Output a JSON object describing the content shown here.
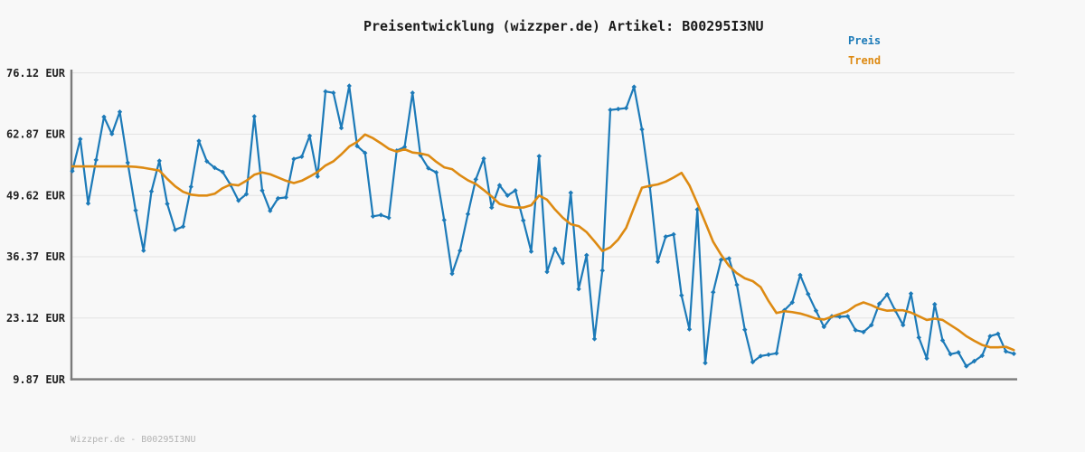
{
  "title": "Preisentwicklung (wizzper.de) Artikel: B00295I3NU",
  "legend": {
    "items": [
      {
        "label": "Preis",
        "color": "#1c7ab8"
      },
      {
        "label": "Trend",
        "color": "#dd8a12"
      }
    ]
  },
  "footer": "Wizzper.de - B00295I3NU",
  "colors": {
    "background": "#f8f8f8",
    "gridline": "#e2e2e2",
    "axis": "#7a7a7a",
    "tick_text": "#222222",
    "title_text": "#1a1a1a",
    "footer_text": "#b3b3b3"
  },
  "chart_data": {
    "type": "line",
    "title": "Preisentwicklung (wizzper.de) Artikel: B00295I3NU",
    "currency": "EUR",
    "grid": true,
    "legend_position": "top-right",
    "x_ticks": [],
    "xlabel": "",
    "ylabel": "",
    "ylim": [
      9.87,
      76.12
    ],
    "y_ticks": [
      {
        "label": "76.12 EUR",
        "value": 76.12
      },
      {
        "label": "62.87 EUR",
        "value": 62.87
      },
      {
        "label": "49.62 EUR",
        "value": 49.62
      },
      {
        "label": "36.37 EUR",
        "value": 36.37
      },
      {
        "label": "23.12 EUR",
        "value": 23.12
      },
      {
        "label": "9.87 EUR",
        "value": 9.87
      }
    ],
    "series": [
      {
        "name": "Preis",
        "color": "#1c7ab8",
        "markers": "diamond",
        "values": [
          54.9,
          61.8,
          47.9,
          57.3,
          66.6,
          62.9,
          67.7,
          56.7,
          46.4,
          37.7,
          50.5,
          57.1,
          47.8,
          42.2,
          42.9,
          51.5,
          61.4,
          57.0,
          55.6,
          54.7,
          51.9,
          48.5,
          49.9,
          66.7,
          50.7,
          46.3,
          49.0,
          49.2,
          57.5,
          58.0,
          62.5,
          53.7,
          72.1,
          71.8,
          64.2,
          73.3,
          60.3,
          58.8,
          45.1,
          45.4,
          44.8,
          59.3,
          60.1,
          71.8,
          58.3,
          55.5,
          54.6,
          44.3,
          32.7,
          37.7,
          45.6,
          53.1,
          57.6,
          47.0,
          51.8,
          49.6,
          50.7,
          44.2,
          37.5,
          58.1,
          33.1,
          38.1,
          35.0,
          50.2,
          29.4,
          36.7,
          18.6,
          33.4,
          68.1,
          68.3,
          68.5,
          73.1,
          63.9,
          51.5,
          35.3,
          40.7,
          41.2,
          28.0,
          20.7,
          46.6,
          13.4,
          28.7,
          35.7,
          36.0,
          30.3,
          20.6,
          13.6,
          14.9,
          15.2,
          15.5,
          24.8,
          26.5,
          32.4,
          28.3,
          24.7,
          21.2,
          23.5,
          23.4,
          23.5,
          20.5,
          20.1,
          21.6,
          26.2,
          28.2,
          24.8,
          21.6,
          28.4,
          18.9,
          14.4,
          26.1,
          18.3,
          15.3,
          15.7,
          12.7,
          13.8,
          15.0,
          19.2,
          19.7,
          15.9,
          15.4
        ]
      },
      {
        "name": "Trend",
        "color": "#dd8a12",
        "markers": "none",
        "values": [
          55.9,
          55.9,
          55.9,
          55.9,
          55.9,
          55.9,
          55.9,
          55.9,
          55.8,
          55.6,
          55.3,
          55.0,
          53.2,
          51.6,
          50.4,
          49.8,
          49.6,
          49.6,
          50.0,
          51.2,
          52.0,
          51.8,
          52.8,
          54.1,
          54.6,
          54.2,
          53.5,
          52.8,
          52.3,
          52.8,
          53.7,
          54.7,
          56.1,
          57.0,
          58.5,
          60.2,
          61.2,
          62.8,
          62.0,
          60.9,
          59.7,
          59.1,
          59.6,
          58.9,
          58.7,
          58.3,
          56.9,
          55.7,
          55.3,
          54.0,
          52.9,
          52.1,
          50.8,
          49.4,
          47.8,
          47.3,
          47.0,
          47.0,
          47.5,
          49.6,
          48.7,
          46.6,
          44.8,
          43.4,
          43.0,
          41.7,
          39.7,
          37.6,
          38.4,
          40.1,
          42.6,
          47.0,
          51.3,
          51.7,
          52.0,
          52.6,
          53.5,
          54.5,
          51.8,
          47.9,
          43.8,
          39.6,
          36.8,
          34.4,
          32.8,
          31.7,
          31.1,
          29.8,
          26.8,
          24.2,
          24.6,
          24.4,
          24.1,
          23.6,
          23.0,
          22.8,
          23.4,
          24.0,
          24.6,
          25.8,
          26.5,
          25.9,
          25.1,
          24.7,
          24.8,
          24.8,
          24.3,
          23.5,
          22.7,
          23.0,
          22.7,
          21.6,
          20.5,
          19.2,
          18.2,
          17.3,
          16.8,
          16.8,
          16.9,
          16.2
        ]
      }
    ]
  }
}
